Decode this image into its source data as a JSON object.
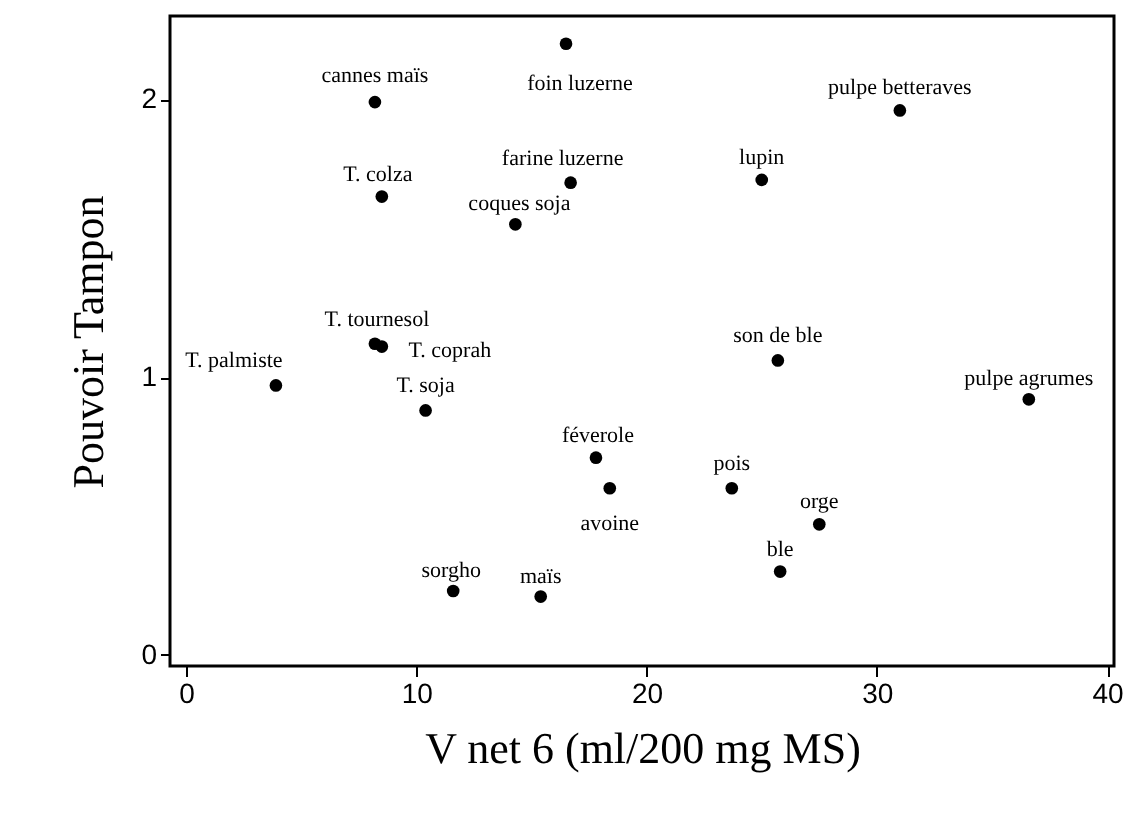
{
  "chart_data": {
    "type": "scatter",
    "xlabel": "V net 6 (ml/200 mg MS)",
    "ylabel": "Pouvoir Tampon",
    "xlim": [
      -0.7,
      40.3
    ],
    "ylim": [
      -0.04,
      2.3
    ],
    "xticks": [
      0,
      10,
      20,
      30,
      40
    ],
    "yticks": [
      0,
      1,
      2
    ],
    "grid": false,
    "marker": "circle",
    "x": [
      16.5,
      8.2,
      31.0,
      16.7,
      25.0,
      8.5,
      14.3,
      8.2,
      8.5,
      3.9,
      25.7,
      36.6,
      10.4,
      17.8,
      18.4,
      23.7,
      27.5,
      25.8,
      11.6,
      15.4
    ],
    "series": [
      {
        "color": "#000000",
        "values": [
          2.2,
          1.99,
          1.96,
          1.7,
          1.71,
          1.65,
          1.55,
          1.12,
          1.11,
          0.97,
          1.06,
          0.92,
          0.88,
          0.71,
          0.6,
          0.6,
          0.47,
          0.3,
          0.23,
          0.21
        ]
      }
    ],
    "annotations": [
      {
        "text": "foin luzerne",
        "x": 16.5,
        "y": 2.2
      },
      {
        "text": "cannes maïs",
        "x": 8.2,
        "y": 1.99
      },
      {
        "text": "pulpe betteraves",
        "x": 31.0,
        "y": 1.96
      },
      {
        "text": "farine luzerne",
        "x": 16.7,
        "y": 1.7
      },
      {
        "text": "lupin",
        "x": 25.0,
        "y": 1.71
      },
      {
        "text": "T. colza",
        "x": 8.5,
        "y": 1.65
      },
      {
        "text": "coques soja",
        "x": 14.3,
        "y": 1.55
      },
      {
        "text": "T. tournesol",
        "x": 8.2,
        "y": 1.12
      },
      {
        "text": "T. coprah",
        "x": 8.5,
        "y": 1.11
      },
      {
        "text": "T. palmiste",
        "x": 3.9,
        "y": 0.97
      },
      {
        "text": "son de ble",
        "x": 25.7,
        "y": 1.06
      },
      {
        "text": "pulpe agrumes",
        "x": 36.6,
        "y": 0.92
      },
      {
        "text": "T. soja",
        "x": 10.4,
        "y": 0.88
      },
      {
        "text": "féverole",
        "x": 17.8,
        "y": 0.71
      },
      {
        "text": "avoine",
        "x": 18.4,
        "y": 0.6
      },
      {
        "text": "pois",
        "x": 23.7,
        "y": 0.6
      },
      {
        "text": "orge",
        "x": 27.5,
        "y": 0.47
      },
      {
        "text": "ble",
        "x": 25.8,
        "y": 0.3
      },
      {
        "text": "sorgho",
        "x": 11.6,
        "y": 0.23
      },
      {
        "text": "maïs",
        "x": 15.4,
        "y": 0.21
      }
    ]
  }
}
